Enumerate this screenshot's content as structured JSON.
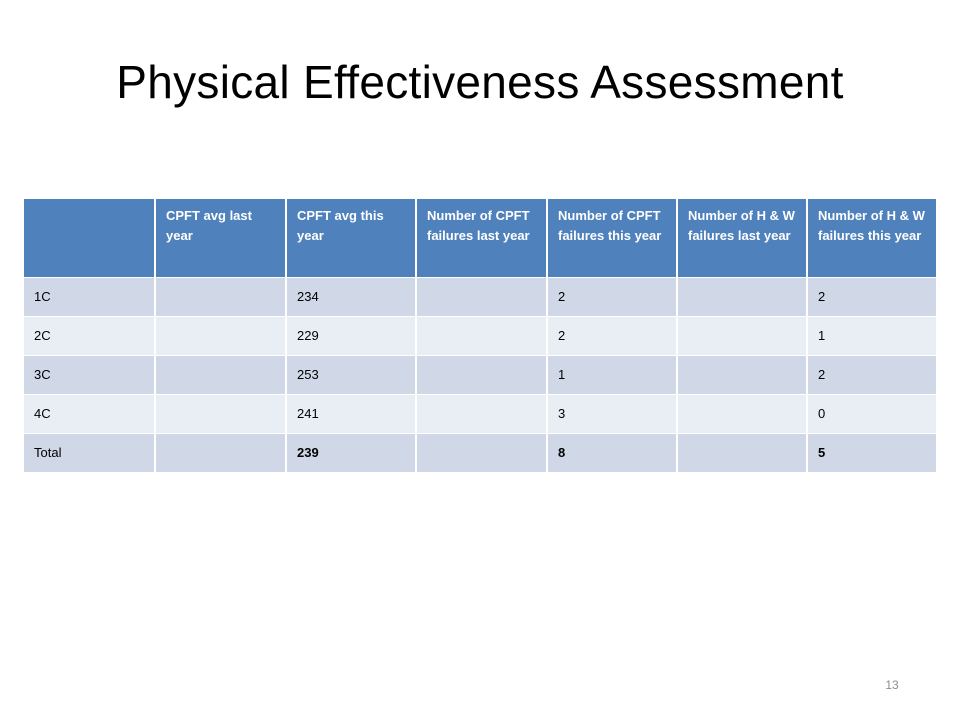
{
  "slide": {
    "title": "Physical Effectiveness Assessment",
    "page_number": "13"
  },
  "table": {
    "headers": [
      "",
      "CPFT avg last year",
      "CPFT avg this year",
      "Number of CPFT failures last year",
      "Number of CPFT failures this year",
      "Number of H & W failures last year",
      "Number of H & W failures this year"
    ],
    "rows": [
      [
        "1C",
        "",
        "234",
        "",
        "2",
        "",
        "2"
      ],
      [
        "2C",
        "",
        "229",
        "",
        "2",
        "",
        "1"
      ],
      [
        "3C",
        "",
        "253",
        "",
        "1",
        "",
        "2"
      ],
      [
        "4C",
        "",
        "241",
        "",
        "3",
        "",
        "0"
      ],
      [
        "Total",
        "",
        "239",
        "",
        "8",
        "",
        "5"
      ]
    ]
  },
  "colors": {
    "header_bg": "#4f81bd",
    "row_band_dark": "#d0d8e8",
    "row_band_light": "#e9edf4"
  }
}
